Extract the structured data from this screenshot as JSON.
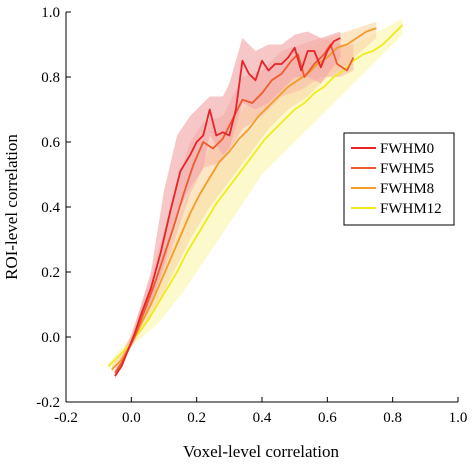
{
  "chart_data": {
    "type": "line",
    "xlabel": "Voxel-level correlation",
    "ylabel": "ROI-level correlation",
    "xlim": [
      -0.2,
      1.0
    ],
    "ylim": [
      -0.2,
      1.0
    ],
    "x_ticks": [
      "-0.2",
      "0.0",
      "0.2",
      "0.4",
      "0.6",
      "0.8",
      "1.0"
    ],
    "y_ticks": [
      "-0.2",
      "0.0",
      "0.2",
      "0.4",
      "0.6",
      "0.8",
      "1.0"
    ],
    "grid": false,
    "legend_position": "right",
    "series": [
      {
        "name": "FWHM0",
        "color": "#e8232a",
        "band_color": "#f2a7a9",
        "points": [
          [
            -0.05,
            -0.12
          ],
          [
            -0.03,
            -0.09
          ],
          [
            -0.01,
            -0.04
          ],
          [
            0.01,
            0.01
          ],
          [
            0.03,
            0.07
          ],
          [
            0.06,
            0.15
          ],
          [
            0.09,
            0.26
          ],
          [
            0.12,
            0.39
          ],
          [
            0.15,
            0.51
          ],
          [
            0.18,
            0.56
          ],
          [
            0.2,
            0.6
          ],
          [
            0.22,
            0.62
          ],
          [
            0.24,
            0.7
          ],
          [
            0.26,
            0.62
          ],
          [
            0.28,
            0.63
          ],
          [
            0.3,
            0.62
          ],
          [
            0.32,
            0.7
          ],
          [
            0.34,
            0.85
          ],
          [
            0.36,
            0.81
          ],
          [
            0.38,
            0.79
          ],
          [
            0.4,
            0.85
          ],
          [
            0.42,
            0.82
          ],
          [
            0.44,
            0.84
          ],
          [
            0.46,
            0.84
          ],
          [
            0.48,
            0.86
          ],
          [
            0.5,
            0.89
          ],
          [
            0.52,
            0.82
          ],
          [
            0.54,
            0.88
          ],
          [
            0.56,
            0.88
          ],
          [
            0.58,
            0.83
          ],
          [
            0.6,
            0.88
          ],
          [
            0.62,
            0.91
          ],
          [
            0.64,
            0.92
          ]
        ],
        "band": [
          [
            -0.05,
            -0.13,
            -0.11
          ],
          [
            0.0,
            -0.03,
            0.0
          ],
          [
            0.06,
            0.1,
            0.2
          ],
          [
            0.1,
            0.22,
            0.45
          ],
          [
            0.14,
            0.38,
            0.62
          ],
          [
            0.18,
            0.46,
            0.68
          ],
          [
            0.22,
            0.52,
            0.72
          ],
          [
            0.24,
            0.62,
            0.74
          ],
          [
            0.28,
            0.56,
            0.74
          ],
          [
            0.3,
            0.58,
            0.78
          ],
          [
            0.34,
            0.72,
            0.92
          ],
          [
            0.38,
            0.7,
            0.88
          ],
          [
            0.42,
            0.72,
            0.9
          ],
          [
            0.46,
            0.76,
            0.9
          ],
          [
            0.5,
            0.8,
            0.93
          ],
          [
            0.54,
            0.8,
            0.94
          ],
          [
            0.58,
            0.78,
            0.92
          ],
          [
            0.64,
            0.86,
            0.94
          ]
        ]
      },
      {
        "name": "FWHM5",
        "color": "#ef5a2e",
        "band_color": "#f7bfa6",
        "points": [
          [
            -0.05,
            -0.11
          ],
          [
            -0.03,
            -0.08
          ],
          [
            -0.01,
            -0.04
          ],
          [
            0.01,
            0.0
          ],
          [
            0.04,
            0.08
          ],
          [
            0.07,
            0.16
          ],
          [
            0.1,
            0.25
          ],
          [
            0.13,
            0.34
          ],
          [
            0.16,
            0.44
          ],
          [
            0.19,
            0.53
          ],
          [
            0.22,
            0.6
          ],
          [
            0.25,
            0.58
          ],
          [
            0.28,
            0.61
          ],
          [
            0.31,
            0.67
          ],
          [
            0.34,
            0.73
          ],
          [
            0.37,
            0.72
          ],
          [
            0.4,
            0.75
          ],
          [
            0.43,
            0.79
          ],
          [
            0.46,
            0.81
          ],
          [
            0.49,
            0.85
          ],
          [
            0.51,
            0.87
          ],
          [
            0.53,
            0.8
          ],
          [
            0.56,
            0.84
          ],
          [
            0.59,
            0.87
          ],
          [
            0.61,
            0.9
          ],
          [
            0.63,
            0.84
          ],
          [
            0.66,
            0.82
          ],
          [
            0.68,
            0.86
          ]
        ],
        "band": [
          [
            -0.05,
            -0.12,
            -0.1
          ],
          [
            0.0,
            -0.02,
            0.01
          ],
          [
            0.06,
            0.1,
            0.18
          ],
          [
            0.12,
            0.26,
            0.4
          ],
          [
            0.18,
            0.44,
            0.6
          ],
          [
            0.22,
            0.52,
            0.66
          ],
          [
            0.28,
            0.54,
            0.68
          ],
          [
            0.34,
            0.64,
            0.8
          ],
          [
            0.4,
            0.68,
            0.82
          ],
          [
            0.46,
            0.74,
            0.88
          ],
          [
            0.52,
            0.76,
            0.9
          ],
          [
            0.58,
            0.8,
            0.92
          ],
          [
            0.64,
            0.8,
            0.9
          ],
          [
            0.68,
            0.82,
            0.9
          ]
        ]
      },
      {
        "name": "FWHM8",
        "color": "#f39c2a",
        "band_color": "#fad9a8",
        "points": [
          [
            -0.06,
            -0.1
          ],
          [
            -0.03,
            -0.07
          ],
          [
            0.0,
            -0.02
          ],
          [
            0.03,
            0.04
          ],
          [
            0.06,
            0.1
          ],
          [
            0.09,
            0.17
          ],
          [
            0.12,
            0.24
          ],
          [
            0.15,
            0.31
          ],
          [
            0.18,
            0.38
          ],
          [
            0.21,
            0.44
          ],
          [
            0.24,
            0.49
          ],
          [
            0.27,
            0.54
          ],
          [
            0.3,
            0.57
          ],
          [
            0.33,
            0.61
          ],
          [
            0.36,
            0.64
          ],
          [
            0.39,
            0.68
          ],
          [
            0.42,
            0.71
          ],
          [
            0.45,
            0.74
          ],
          [
            0.48,
            0.77
          ],
          [
            0.51,
            0.79
          ],
          [
            0.54,
            0.81
          ],
          [
            0.57,
            0.84
          ],
          [
            0.6,
            0.86
          ],
          [
            0.63,
            0.89
          ],
          [
            0.66,
            0.9
          ],
          [
            0.69,
            0.92
          ],
          [
            0.72,
            0.94
          ],
          [
            0.75,
            0.95
          ]
        ],
        "band": [
          [
            -0.06,
            -0.11,
            -0.09
          ],
          [
            0.0,
            -0.03,
            0.0
          ],
          [
            0.06,
            0.06,
            0.14
          ],
          [
            0.12,
            0.18,
            0.3
          ],
          [
            0.18,
            0.3,
            0.46
          ],
          [
            0.24,
            0.4,
            0.58
          ],
          [
            0.3,
            0.48,
            0.66
          ],
          [
            0.36,
            0.56,
            0.72
          ],
          [
            0.42,
            0.64,
            0.78
          ],
          [
            0.48,
            0.7,
            0.84
          ],
          [
            0.54,
            0.74,
            0.88
          ],
          [
            0.6,
            0.8,
            0.92
          ],
          [
            0.66,
            0.84,
            0.94
          ],
          [
            0.75,
            0.92,
            0.97
          ]
        ]
      },
      {
        "name": "FWHM12",
        "color": "#f0ea1f",
        "band_color": "#fbf7b0",
        "points": [
          [
            -0.07,
            -0.09
          ],
          [
            -0.04,
            -0.06
          ],
          [
            -0.01,
            -0.03
          ],
          [
            0.02,
            0.01
          ],
          [
            0.05,
            0.05
          ],
          [
            0.08,
            0.1
          ],
          [
            0.11,
            0.15
          ],
          [
            0.14,
            0.2
          ],
          [
            0.17,
            0.26
          ],
          [
            0.2,
            0.31
          ],
          [
            0.23,
            0.36
          ],
          [
            0.26,
            0.41
          ],
          [
            0.29,
            0.45
          ],
          [
            0.32,
            0.49
          ],
          [
            0.35,
            0.53
          ],
          [
            0.38,
            0.57
          ],
          [
            0.41,
            0.61
          ],
          [
            0.44,
            0.64
          ],
          [
            0.47,
            0.67
          ],
          [
            0.5,
            0.7
          ],
          [
            0.53,
            0.72
          ],
          [
            0.56,
            0.75
          ],
          [
            0.59,
            0.77
          ],
          [
            0.62,
            0.8
          ],
          [
            0.65,
            0.82
          ],
          [
            0.68,
            0.85
          ],
          [
            0.71,
            0.87
          ],
          [
            0.74,
            0.88
          ],
          [
            0.77,
            0.9
          ],
          [
            0.8,
            0.93
          ],
          [
            0.83,
            0.96
          ]
        ],
        "band": [
          [
            -0.07,
            -0.1,
            -0.08
          ],
          [
            0.0,
            -0.03,
            0.0
          ],
          [
            0.08,
            0.04,
            0.16
          ],
          [
            0.16,
            0.14,
            0.36
          ],
          [
            0.24,
            0.26,
            0.5
          ],
          [
            0.32,
            0.38,
            0.58
          ],
          [
            0.4,
            0.5,
            0.68
          ],
          [
            0.48,
            0.58,
            0.76
          ],
          [
            0.56,
            0.66,
            0.84
          ],
          [
            0.64,
            0.74,
            0.88
          ],
          [
            0.72,
            0.82,
            0.92
          ],
          [
            0.83,
            0.93,
            0.98
          ]
        ]
      }
    ]
  }
}
